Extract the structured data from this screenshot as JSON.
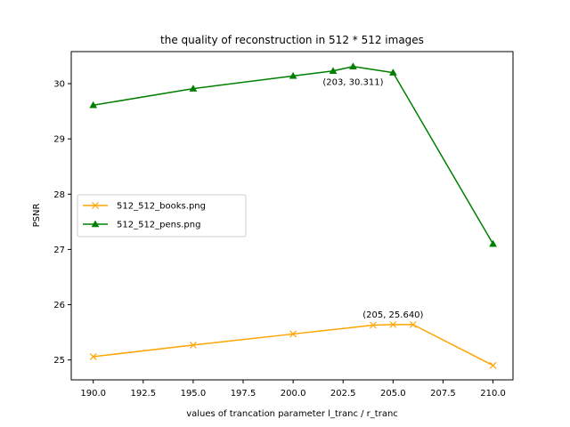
{
  "chart_data": {
    "type": "line",
    "title": "the quality of reconstruction in 512 * 512 images",
    "xlabel": "values of trancation parameter l_tranc / r_tranc",
    "ylabel": "PSNR",
    "xlim": [
      188.9,
      211.0
    ],
    "ylim": [
      24.64,
      30.58
    ],
    "xticks": [
      190.0,
      192.5,
      195.0,
      197.5,
      200.0,
      202.5,
      205.0,
      207.5,
      210.0
    ],
    "xtick_labels": [
      "190.0",
      "192.5",
      "195.0",
      "197.5",
      "200.0",
      "202.5",
      "205.0",
      "207.5",
      "210.0"
    ],
    "yticks": [
      25,
      26,
      27,
      28,
      29,
      30
    ],
    "ytick_labels": [
      "25",
      "26",
      "27",
      "28",
      "29",
      "30"
    ],
    "grid": false,
    "legend": "center-left",
    "series": [
      {
        "name": "512_512_books.png",
        "color": "#ffa500",
        "marker": "x",
        "x": [
          190,
          195,
          200,
          204,
          205,
          206,
          210
        ],
        "y": [
          25.06,
          25.27,
          25.47,
          25.63,
          25.64,
          25.64,
          24.9
        ]
      },
      {
        "name": "512_512_pens.png",
        "color": "#008000",
        "marker": "triangle",
        "x": [
          190,
          195,
          200,
          202,
          203,
          205,
          210
        ],
        "y": [
          29.61,
          29.91,
          30.14,
          30.23,
          30.311,
          30.2,
          27.1
        ]
      }
    ],
    "annotations": [
      {
        "text": "(203, 30.311)",
        "x": 203,
        "y": 30.311,
        "series": 1
      },
      {
        "text": "(205, 25.640)",
        "x": 205,
        "y": 25.64,
        "series": 0
      }
    ]
  }
}
